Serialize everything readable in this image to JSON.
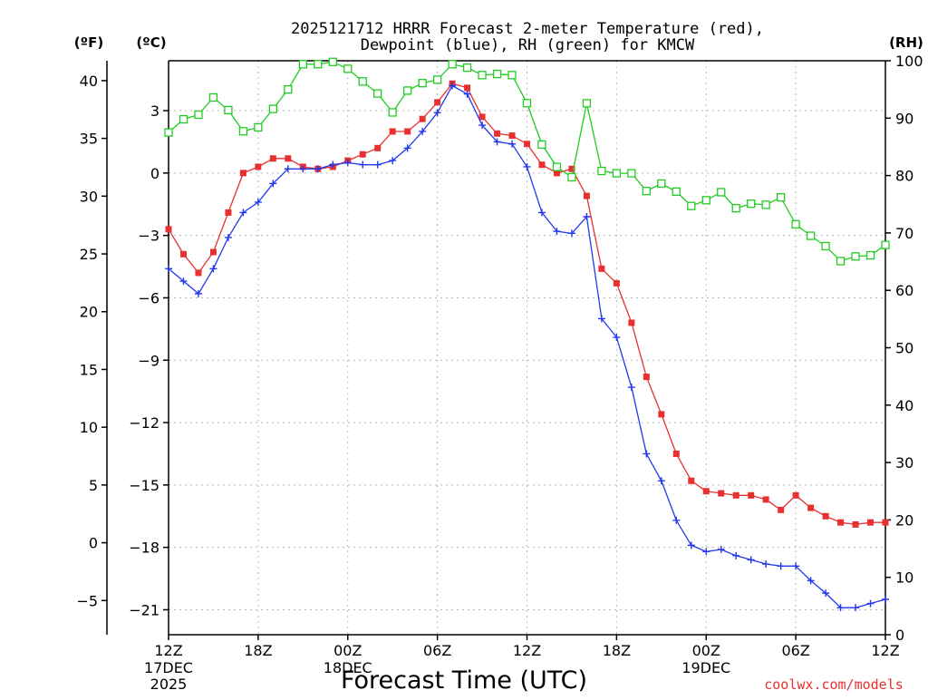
{
  "chart_data": {
    "type": "line",
    "title_line1": "2025121712 HRRR Forecast 2-meter Temperature (red),",
    "title_line2": "Dewpoint (blue), RH (green) for KMCW",
    "xlabel": "Forecast Time (UTC)",
    "credit": "coolwx.com/models",
    "left_outer_axis_label": "(ºF)",
    "left_inner_axis_label": "(ºC)",
    "right_axis_label": "(RH)",
    "x_range_hours": [
      0,
      48
    ],
    "celsius_range": [
      -22.2,
      5.4
    ],
    "rh_range": [
      0,
      100
    ],
    "grid": true,
    "x_ticks": [
      {
        "hour": 0,
        "label": "12Z",
        "sub1": "17DEC",
        "sub2": "2025"
      },
      {
        "hour": 6,
        "label": "18Z",
        "sub1": "",
        "sub2": ""
      },
      {
        "hour": 12,
        "label": "00Z",
        "sub1": "18DEC",
        "sub2": ""
      },
      {
        "hour": 18,
        "label": "06Z",
        "sub1": "",
        "sub2": ""
      },
      {
        "hour": 24,
        "label": "12Z",
        "sub1": "",
        "sub2": ""
      },
      {
        "hour": 30,
        "label": "18Z",
        "sub1": "",
        "sub2": ""
      },
      {
        "hour": 36,
        "label": "00Z",
        "sub1": "19DEC",
        "sub2": ""
      },
      {
        "hour": 42,
        "label": "06Z",
        "sub1": "",
        "sub2": ""
      },
      {
        "hour": 48,
        "label": "12Z",
        "sub1": "",
        "sub2": ""
      }
    ],
    "celsius_ticks": [
      3,
      0,
      -3,
      -6,
      -9,
      -12,
      -15,
      -18,
      -21
    ],
    "celsius_tick_labels": [
      "3",
      "0",
      "−3",
      "−6",
      "−9",
      "−12",
      "−15",
      "−18",
      "−21"
    ],
    "fahrenheit_ticks": [
      40,
      35,
      30,
      25,
      20,
      15,
      10,
      5,
      0,
      -5
    ],
    "fahrenheit_tick_labels": [
      "40",
      "35",
      "30",
      "25",
      "20",
      "15",
      "10",
      "5",
      "0",
      "−5"
    ],
    "rh_ticks": [
      100,
      90,
      80,
      70,
      60,
      50,
      40,
      30,
      20,
      10,
      0
    ],
    "rh_tick_labels": [
      "100",
      "90",
      "80",
      "70",
      "60",
      "50",
      "40",
      "30",
      "20",
      "10",
      "0"
    ],
    "series": [
      {
        "name": "Temperature",
        "units": "C",
        "color": "#e83030",
        "marker": "filled-square",
        "values": [
          -2.7,
          -3.9,
          -4.8,
          -3.8,
          -1.9,
          0.0,
          0.3,
          0.7,
          0.7,
          0.3,
          0.2,
          0.3,
          0.6,
          0.9,
          1.2,
          2.0,
          2.0,
          2.6,
          3.4,
          4.3,
          4.1,
          2.7,
          1.9,
          1.8,
          1.4,
          0.4,
          0.0,
          0.2,
          -1.1,
          -4.6,
          -5.3,
          -7.2,
          -9.8,
          -11.6,
          -13.5,
          -14.8,
          -15.3,
          -15.4,
          -15.5,
          -15.5,
          -15.7,
          -16.2,
          -15.5,
          -16.1,
          -16.5,
          -16.8,
          -16.9,
          -16.8,
          -16.8
        ]
      },
      {
        "name": "Dewpoint",
        "units": "C",
        "color": "#2238ee",
        "marker": "plus",
        "values": [
          -4.6,
          -5.2,
          -5.8,
          -4.6,
          -3.1,
          -1.9,
          -1.4,
          -0.5,
          0.2,
          0.2,
          0.2,
          0.4,
          0.5,
          0.4,
          0.4,
          0.6,
          1.2,
          2.0,
          2.9,
          4.2,
          3.8,
          2.3,
          1.5,
          1.4,
          0.3,
          -1.9,
          -2.8,
          -2.9,
          -2.1,
          -7.0,
          -7.9,
          -10.3,
          -13.5,
          -14.8,
          -16.7,
          -17.9,
          -18.2,
          -18.1,
          -18.4,
          -18.6,
          -18.8,
          -18.9,
          -18.9,
          -19.6,
          -20.2,
          -20.9,
          -20.9,
          -20.7,
          -20.5
        ]
      },
      {
        "name": "RH",
        "units": "%",
        "color": "#22cc22",
        "marker": "open-square",
        "values": [
          87.5,
          89.8,
          90.6,
          93.6,
          91.4,
          87.7,
          88.4,
          91.6,
          95.0,
          99.4,
          99.4,
          99.8,
          98.6,
          96.4,
          94.3,
          91.0,
          94.8,
          96.1,
          96.7,
          99.4,
          98.8,
          97.5,
          97.7,
          97.5,
          92.6,
          85.4,
          81.5,
          79.7,
          92.6,
          80.8,
          80.4,
          80.4,
          77.3,
          78.6,
          77.2,
          74.7,
          75.7,
          77.1,
          74.3,
          75.1,
          74.9,
          76.2,
          71.5,
          69.5,
          67.7,
          65.1,
          65.9,
          66.1,
          67.9
        ]
      }
    ]
  }
}
